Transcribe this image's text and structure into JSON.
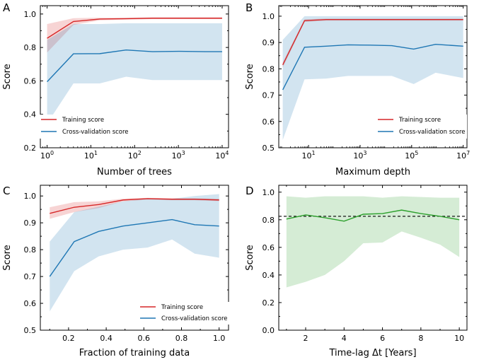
{
  "chart_data": [
    {
      "panel": "A",
      "type": "line",
      "xlabel": "Number of trees",
      "ylabel": "Score",
      "xscale": "log",
      "xlim": [
        0.7,
        14000
      ],
      "ylim": [
        0.2,
        1.05
      ],
      "xticks": [
        1,
        10,
        100,
        1000,
        10000
      ],
      "xtick_labels": [
        "10^0",
        "10^1",
        "10^2",
        "10^3",
        "10^4"
      ],
      "yticks": [
        0.2,
        0.4,
        0.6,
        0.8,
        1.0
      ],
      "ytick_labels": [
        "0.2",
        "0.4",
        "0.6",
        "0.8",
        "1.0"
      ],
      "legend_position": "lower-left",
      "series": [
        {
          "name": "Training score",
          "color": "#d62728",
          "x": [
            1,
            4,
            16,
            64,
            256,
            1024,
            4096,
            10000
          ],
          "values": [
            0.855,
            0.955,
            0.97,
            0.972,
            0.975,
            0.975,
            0.975,
            0.975
          ],
          "lower": [
            0.77,
            0.935,
            0.962,
            0.966,
            0.97,
            0.97,
            0.97,
            0.97
          ],
          "upper": [
            0.94,
            0.975,
            0.978,
            0.978,
            0.98,
            0.98,
            0.98,
            0.98
          ]
        },
        {
          "name": "Cross-validation score",
          "color": "#1f77b4",
          "x": [
            1,
            4,
            16,
            64,
            256,
            1024,
            4096,
            10000
          ],
          "values": [
            0.595,
            0.762,
            0.763,
            0.785,
            0.775,
            0.777,
            0.775,
            0.775
          ],
          "lower": [
            0.345,
            0.585,
            0.585,
            0.625,
            0.605,
            0.605,
            0.605,
            0.605
          ],
          "upper": [
            0.845,
            0.94,
            0.94,
            0.945,
            0.945,
            0.945,
            0.945,
            0.945
          ]
        }
      ]
    },
    {
      "panel": "B",
      "type": "line",
      "xlabel": "Maximum depth",
      "ylabel": "Score",
      "xscale": "log",
      "xlim": [
        0.7,
        14000000
      ],
      "ylim": [
        0.5,
        1.04
      ],
      "xticks": [
        10,
        1000,
        100000,
        10000000
      ],
      "xtick_labels": [
        "10^1",
        "10^3",
        "10^5",
        "10^7"
      ],
      "yticks": [
        0.5,
        0.6,
        0.7,
        0.8,
        0.9,
        1.0
      ],
      "ytick_labels": [
        "0.5",
        "0.6",
        "0.7",
        "0.8",
        "0.9",
        "1.0"
      ],
      "legend_position": "lower-right",
      "series": [
        {
          "name": "Training score",
          "color": "#d62728",
          "x": [
            1,
            7,
            48,
            340,
            2400,
            17000,
            120000,
            850000,
            10000000
          ],
          "values": [
            0.815,
            0.983,
            0.987,
            0.987,
            0.987,
            0.987,
            0.987,
            0.987,
            0.987
          ],
          "lower": [
            0.805,
            0.978,
            0.983,
            0.983,
            0.983,
            0.983,
            0.983,
            0.983,
            0.983
          ],
          "upper": [
            0.825,
            0.988,
            0.991,
            0.991,
            0.991,
            0.991,
            0.991,
            0.991,
            0.991
          ]
        },
        {
          "name": "Cross-validation score",
          "color": "#1f77b4",
          "x": [
            1,
            7,
            48,
            340,
            2400,
            17000,
            120000,
            850000,
            10000000
          ],
          "values": [
            0.72,
            0.882,
            0.886,
            0.891,
            0.89,
            0.888,
            0.875,
            0.893,
            0.886
          ],
          "lower": [
            0.53,
            0.76,
            0.763,
            0.773,
            0.773,
            0.773,
            0.742,
            0.785,
            0.765
          ],
          "upper": [
            0.91,
            1.0,
            1.0,
            1.0,
            1.0,
            1.0,
            1.0,
            1.0,
            1.0
          ]
        }
      ]
    },
    {
      "panel": "C",
      "type": "line",
      "xlabel": "Fraction of training data",
      "ylabel": "Score",
      "xscale": "linear",
      "xlim": [
        0.05,
        1.05
      ],
      "ylim": [
        0.5,
        1.04
      ],
      "xticks": [
        0.2,
        0.4,
        0.6,
        0.8,
        1.0
      ],
      "xtick_labels": [
        "0.2",
        "0.4",
        "0.6",
        "0.8",
        "1.0"
      ],
      "yticks": [
        0.5,
        0.6,
        0.7,
        0.8,
        0.9,
        1.0
      ],
      "ytick_labels": [
        "0.5",
        "0.6",
        "0.7",
        "0.8",
        "0.9",
        "1.0"
      ],
      "legend_position": "lower-right",
      "series": [
        {
          "name": "Training score",
          "color": "#d62728",
          "x": [
            0.1,
            0.23,
            0.36,
            0.49,
            0.62,
            0.75,
            0.87,
            1.0
          ],
          "values": [
            0.935,
            0.958,
            0.968,
            0.985,
            0.99,
            0.988,
            0.988,
            0.985
          ],
          "lower": [
            0.915,
            0.94,
            0.955,
            0.98,
            0.986,
            0.984,
            0.984,
            0.981
          ],
          "upper": [
            0.958,
            0.977,
            0.98,
            0.99,
            0.993,
            0.991,
            0.991,
            0.99
          ]
        },
        {
          "name": "Cross-validation score",
          "color": "#1f77b4",
          "x": [
            0.1,
            0.23,
            0.36,
            0.49,
            0.62,
            0.75,
            0.87,
            1.0
          ],
          "values": [
            0.7,
            0.83,
            0.868,
            0.888,
            0.9,
            0.912,
            0.893,
            0.888
          ],
          "lower": [
            0.57,
            0.72,
            0.775,
            0.8,
            0.808,
            0.838,
            0.785,
            0.77
          ],
          "upper": [
            0.83,
            0.94,
            0.96,
            0.98,
            0.99,
            0.99,
            1.0,
            1.007
          ]
        }
      ]
    },
    {
      "panel": "D",
      "type": "line",
      "xlabel": "Time-lag Δt [Years]",
      "ylabel": "Score",
      "xscale": "linear",
      "xlim": [
        0.6,
        10.4
      ],
      "ylim": [
        0.0,
        1.05
      ],
      "xticks": [
        2,
        4,
        6,
        8,
        10
      ],
      "xtick_labels": [
        "2",
        "4",
        "6",
        "8",
        "10"
      ],
      "yticks": [
        0.0,
        0.2,
        0.4,
        0.6,
        0.8,
        1.0
      ],
      "ytick_labels": [
        "0.0",
        "0.2",
        "0.4",
        "0.6",
        "0.8",
        "1.0"
      ],
      "reference_line": {
        "y": 0.825,
        "style": "dashed",
        "color": "#000000"
      },
      "series": [
        {
          "name": "",
          "color": "#2ca02c",
          "x": [
            1,
            2,
            3,
            4,
            5,
            6,
            7,
            8,
            9,
            10
          ],
          "values": [
            0.805,
            0.835,
            0.815,
            0.79,
            0.84,
            0.845,
            0.87,
            0.845,
            0.825,
            0.8
          ],
          "lower": [
            0.31,
            0.35,
            0.4,
            0.5,
            0.63,
            0.635,
            0.715,
            0.67,
            0.62,
            0.53
          ],
          "upper": [
            0.97,
            0.96,
            0.97,
            0.97,
            0.97,
            0.96,
            0.97,
            0.965,
            0.96,
            0.96
          ]
        }
      ]
    }
  ]
}
